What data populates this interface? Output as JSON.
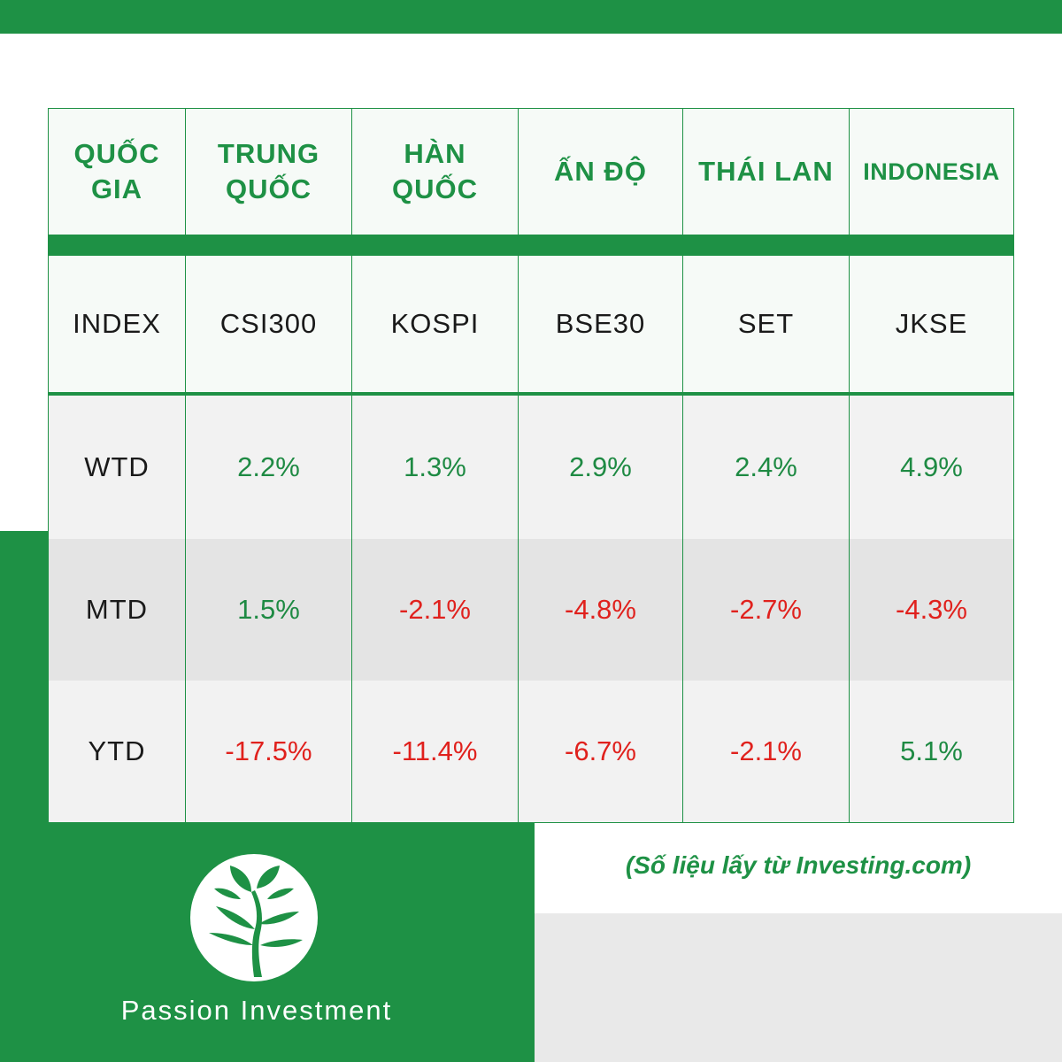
{
  "header": {
    "row_label": "QUỐC GIA",
    "countries": [
      "TRUNG QUỐC",
      "HÀN QUỐC",
      "ẤN ĐỘ",
      "THÁI LAN",
      "INDONESIA"
    ]
  },
  "index_row": {
    "label": "INDEX",
    "values": [
      "CSI300",
      "KOSPI",
      "BSE30",
      "SET",
      "JKSE"
    ]
  },
  "rows": [
    {
      "label": "WTD",
      "values": [
        "2.2%",
        "1.3%",
        "2.9%",
        "2.4%",
        "4.9%"
      ]
    },
    {
      "label": "MTD",
      "values": [
        "1.5%",
        "-2.1%",
        "-4.8%",
        "-2.7%",
        "-4.3%"
      ]
    },
    {
      "label": "YTD",
      "values": [
        "-17.5%",
        "-11.4%",
        "-6.7%",
        "-2.1%",
        "5.1%"
      ]
    }
  ],
  "source_note": "(Số liệu lấy từ Investing.com)",
  "brand": {
    "name": "Passion Investment",
    "logo_icon": "tree-logo-icon"
  },
  "colors": {
    "brand_green": "#1e9145",
    "positive": "#1e8a43",
    "negative": "#e0211d"
  }
}
